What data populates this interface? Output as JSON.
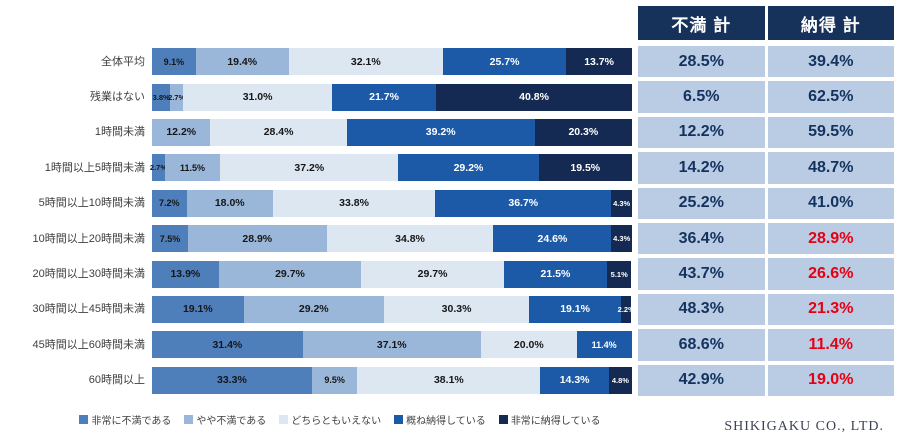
{
  "chart_data": {
    "type": "bar",
    "stacked": true,
    "orientation": "horizontal",
    "xlim": [
      0,
      100
    ],
    "grid": false,
    "legend_position": "bottom",
    "categories": [
      "全体平均",
      "残業はない",
      "1時間未満",
      "1時間以上5時間未満",
      "5時間以上10時間未満",
      "10時間以上20時間未満",
      "20時間以上30時間未満",
      "30時間以上45時間未満",
      "45時間以上60時間未満",
      "60時間以上"
    ],
    "series": [
      {
        "name": "非常に不満である",
        "color": "#4e7fba",
        "text": "dark",
        "values": [
          9.1,
          3.8,
          0,
          2.7,
          7.2,
          7.5,
          13.9,
          19.1,
          31.4,
          33.3
        ]
      },
      {
        "name": "やや不満である",
        "color": "#9ab7d9",
        "text": "dark",
        "values": [
          19.4,
          2.7,
          12.2,
          11.5,
          18.0,
          28.9,
          29.7,
          29.2,
          37.1,
          9.5
        ]
      },
      {
        "name": "どちらともいえない",
        "color": "#dde7f2",
        "text": "dark",
        "values": [
          32.1,
          31.0,
          28.4,
          37.2,
          33.8,
          34.8,
          29.7,
          30.3,
          20.0,
          38.1
        ]
      },
      {
        "name": "概ね納得している",
        "color": "#1c5aa8",
        "text": "white",
        "values": [
          25.7,
          21.7,
          39.2,
          29.2,
          36.7,
          24.6,
          21.5,
          19.1,
          11.4,
          14.3
        ]
      },
      {
        "name": "非常に納得している",
        "color": "#142a52",
        "text": "white",
        "values": [
          13.7,
          40.8,
          20.3,
          19.5,
          4.3,
          4.3,
          5.1,
          2.2,
          0,
          4.8
        ]
      }
    ]
  },
  "table": {
    "headers": [
      "不満 計",
      "納得 計"
    ],
    "rows": [
      {
        "fuman": "28.5%",
        "nattoku": "39.4%",
        "nattoku_red": false
      },
      {
        "fuman": "6.5%",
        "nattoku": "62.5%",
        "nattoku_red": false
      },
      {
        "fuman": "12.2%",
        "nattoku": "59.5%",
        "nattoku_red": false
      },
      {
        "fuman": "14.2%",
        "nattoku": "48.7%",
        "nattoku_red": false
      },
      {
        "fuman": "25.2%",
        "nattoku": "41.0%",
        "nattoku_red": false
      },
      {
        "fuman": "36.4%",
        "nattoku": "28.9%",
        "nattoku_red": true
      },
      {
        "fuman": "43.7%",
        "nattoku": "26.6%",
        "nattoku_red": true
      },
      {
        "fuman": "48.3%",
        "nattoku": "21.3%",
        "nattoku_red": true
      },
      {
        "fuman": "68.6%",
        "nattoku": "11.4%",
        "nattoku_red": true
      },
      {
        "fuman": "42.9%",
        "nattoku": "19.0%",
        "nattoku_red": true
      }
    ]
  },
  "footer": {
    "brand": "SHIKIGAKU CO., LTD."
  }
}
